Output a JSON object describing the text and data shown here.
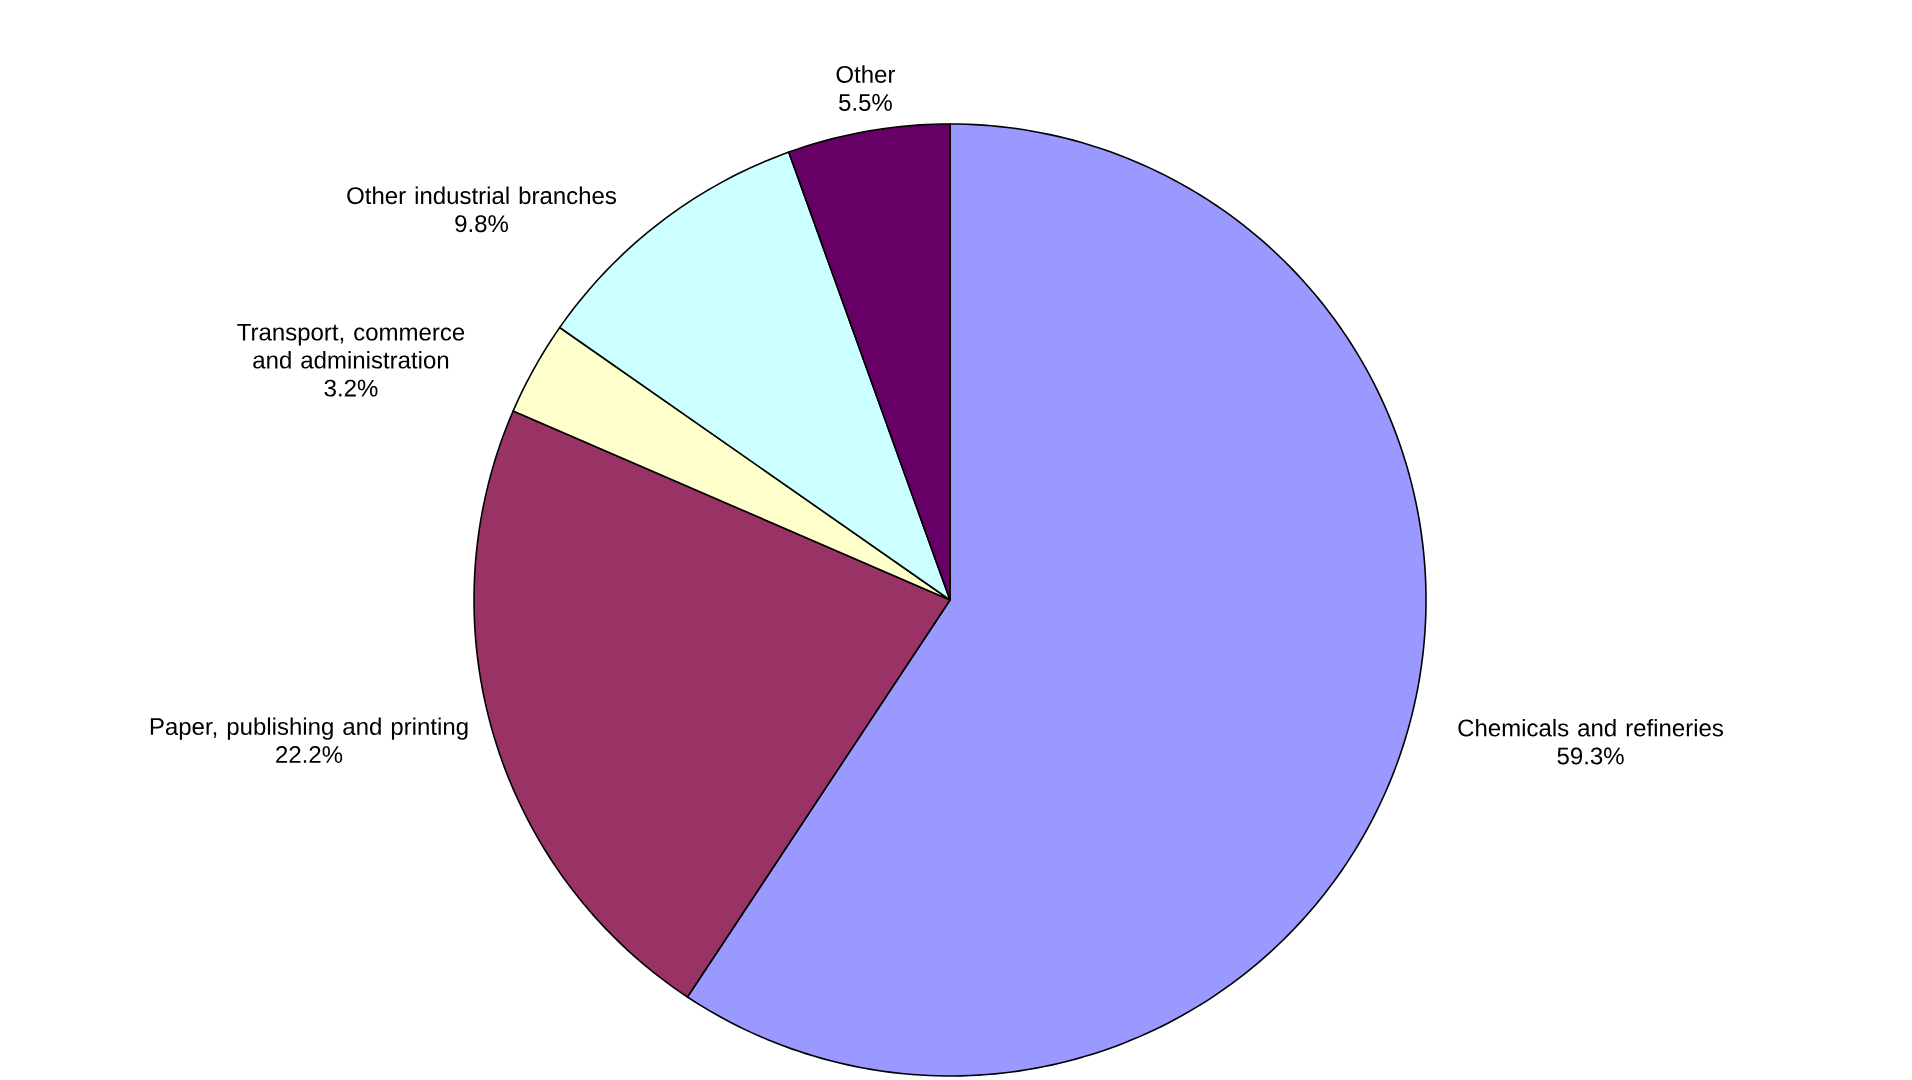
{
  "chart_data": {
    "type": "pie",
    "categories": [
      "Chemicals and refineries",
      "Paper, publishing and printing",
      "Transport, commerce and administration",
      "Other industrial branches",
      "Other"
    ],
    "values": [
      59.3,
      22.2,
      3.2,
      9.8,
      5.5
    ],
    "colors": [
      "#9999ff",
      "#993366",
      "#ffffcc",
      "#ccffff",
      "#660066"
    ],
    "value_labels": [
      "59.3%",
      "22.2%",
      "3.2%",
      "9.8%",
      "5.5%"
    ]
  }
}
